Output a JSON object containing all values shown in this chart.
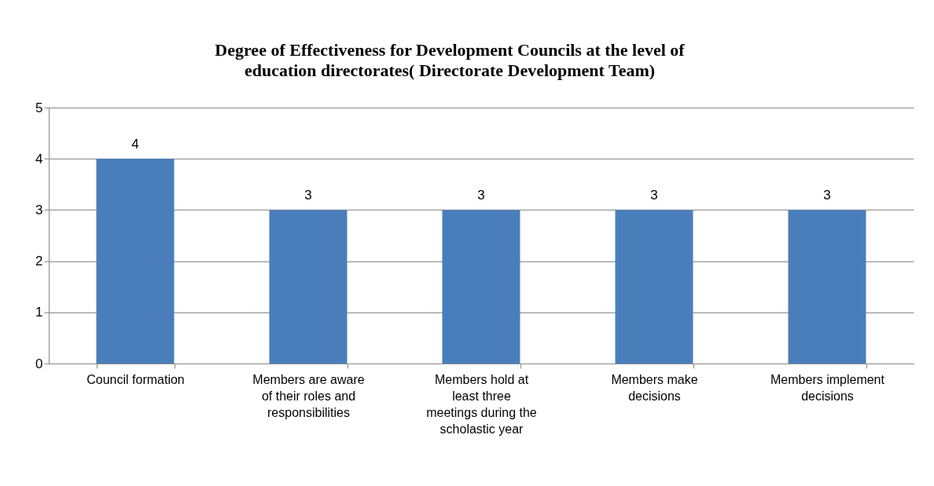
{
  "chart_data": {
    "type": "bar",
    "title": "Degree of Effectiveness for Development Councils at the level of education directorates( Directorate Development Team)",
    "categories": [
      "Council formation",
      "Members are aware of their roles and responsibilities",
      "Members hold at least three meetings during the scholastic year",
      "Members make decisions",
      "Members implement decisions"
    ],
    "values": [
      4,
      3,
      3,
      3,
      3
    ],
    "color": "#4a7ebb",
    "ylim": [
      0,
      5
    ],
    "yticks": [
      0,
      1,
      2,
      3,
      4,
      5
    ],
    "grid": "y",
    "data_labels": true
  }
}
